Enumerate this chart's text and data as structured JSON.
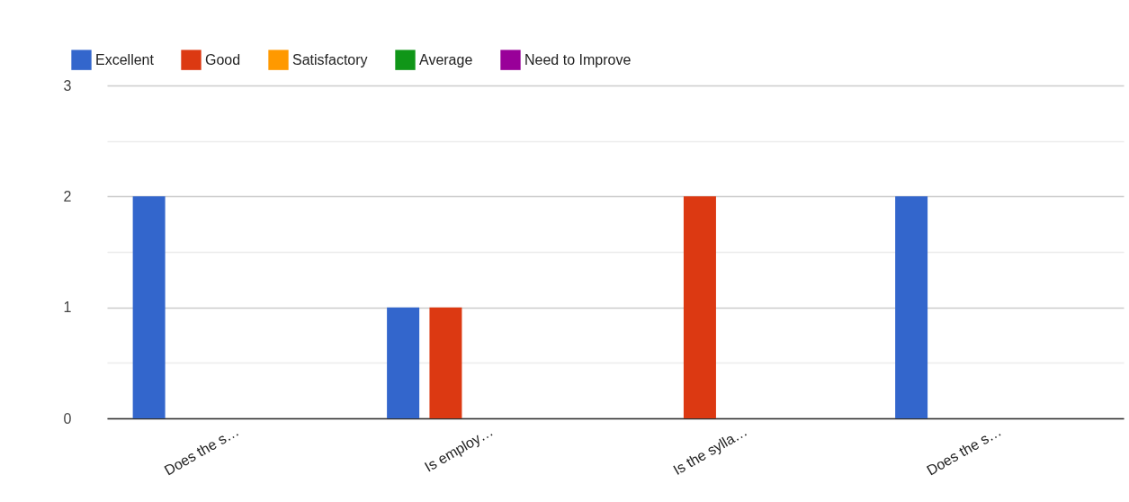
{
  "chart_data": {
    "type": "bar",
    "categories": [
      "Does the s…",
      "Is employ…",
      "Is the sylla…",
      "Does the s…"
    ],
    "series": [
      {
        "name": "Excellent",
        "color": "#3366cc",
        "values": [
          2,
          1,
          0,
          2
        ]
      },
      {
        "name": "Good",
        "color": "#dc3912",
        "values": [
          0,
          1,
          2,
          0
        ]
      },
      {
        "name": "Satisfactory",
        "color": "#ff9900",
        "values": [
          0,
          0,
          0,
          0
        ]
      },
      {
        "name": "Average",
        "color": "#109618",
        "values": [
          0,
          0,
          0,
          0
        ]
      },
      {
        "name": "Need to Improve",
        "color": "#990099",
        "values": [
          0,
          0,
          0,
          0
        ]
      }
    ],
    "ylim": [
      0,
      3
    ],
    "yticks": [
      0,
      {
        "value": 0.5,
        "label": null
      },
      1,
      {
        "value": 1.5,
        "label": null
      },
      2,
      {
        "value": 2.5,
        "label": null
      },
      3
    ],
    "grid": true,
    "legend": "top left"
  }
}
